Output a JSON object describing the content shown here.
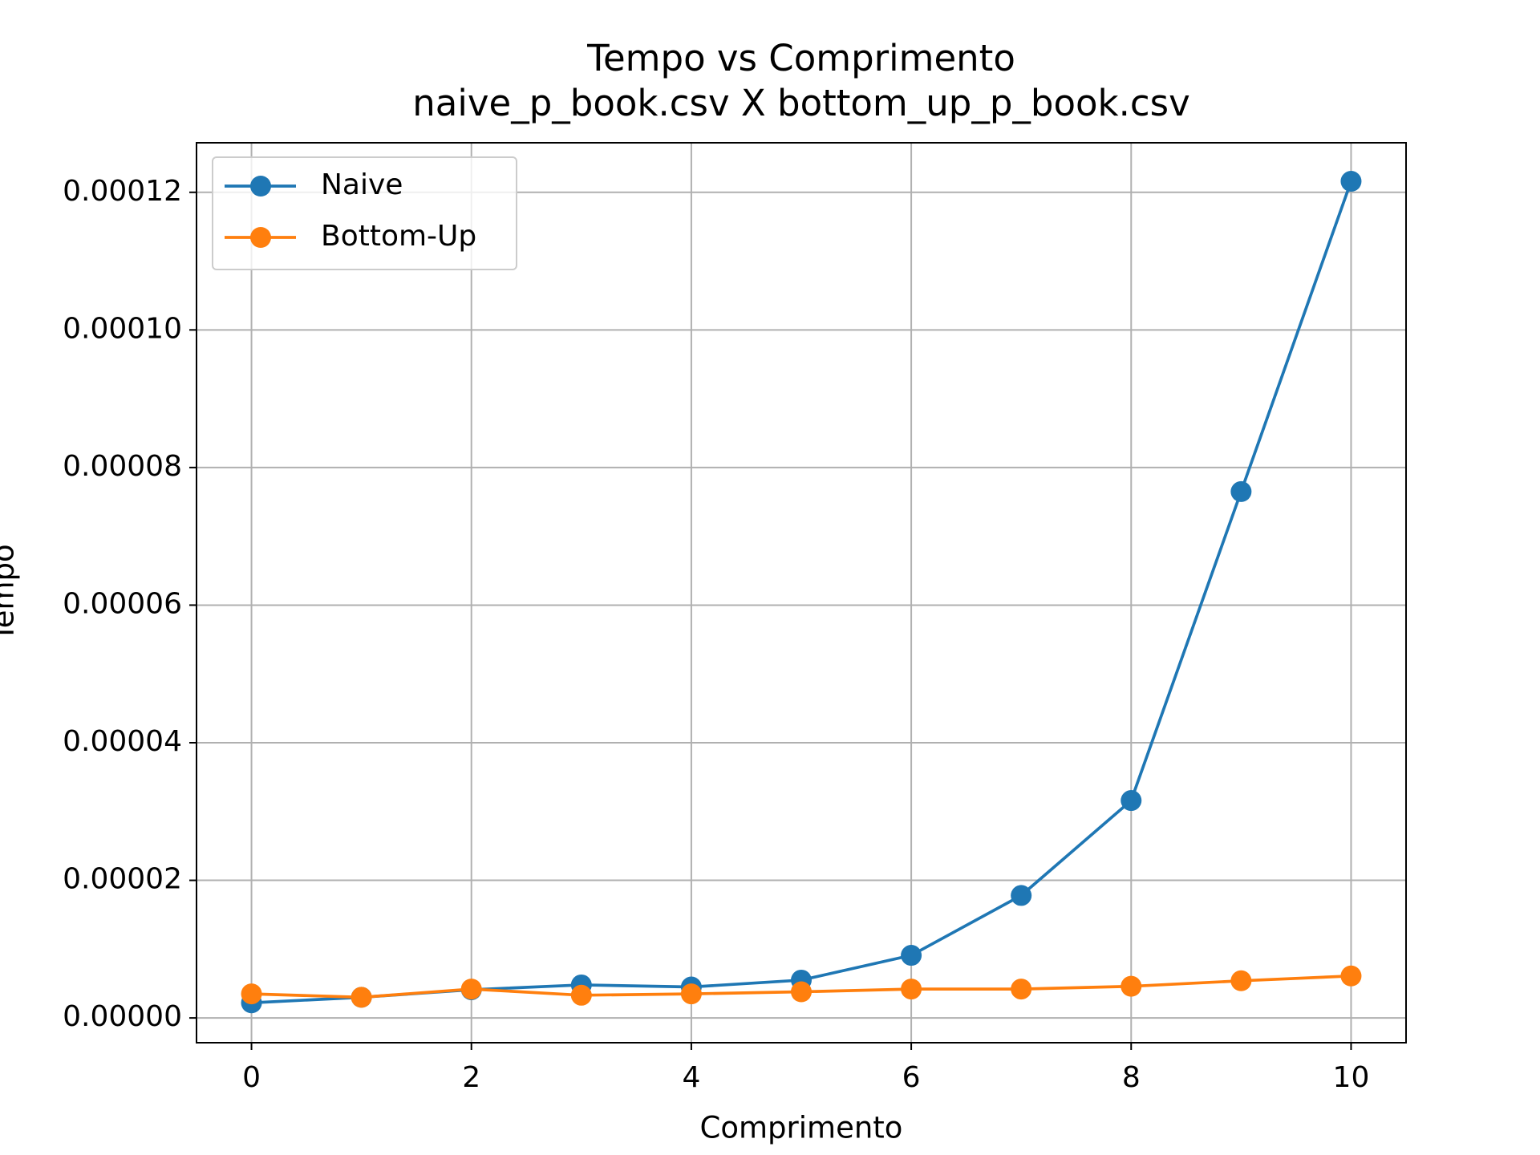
{
  "chart_data": {
    "type": "line",
    "title": "Tempo vs Comprimento",
    "subtitle": "naive_p_book.csv X bottom_up_p_book.csv",
    "xlabel": "Comprimento",
    "ylabel": "Tempo",
    "x": [
      0,
      1,
      2,
      3,
      4,
      5,
      6,
      7,
      8,
      9,
      10
    ],
    "series": [
      {
        "name": "Naive",
        "color": "#1f77b4",
        "values": [
          2.2e-06,
          3e-06,
          4.1e-06,
          4.8e-06,
          4.5e-06,
          5.5e-06,
          9.1e-06,
          1.78e-05,
          3.16e-05,
          7.65e-05,
          0.0001216
        ]
      },
      {
        "name": "Bottom-Up",
        "color": "#ff7f0e",
        "values": [
          3.5e-06,
          3e-06,
          4.2e-06,
          3.3e-06,
          3.5e-06,
          3.8e-06,
          4.2e-06,
          4.2e-06,
          4.6e-06,
          5.4e-06,
          6.1e-06
        ]
      }
    ],
    "xlim": [
      -0.5,
      10.5
    ],
    "xticks": [
      0,
      2,
      4,
      6,
      8,
      10
    ],
    "ylim": [
      -3.6e-06,
      0.0001272
    ],
    "yticks": [
      {
        "value": 0,
        "label": "0.00000"
      },
      {
        "value": 2e-05,
        "label": "0.00002"
      },
      {
        "value": 4e-05,
        "label": "0.00004"
      },
      {
        "value": 6e-05,
        "label": "0.00006"
      },
      {
        "value": 8e-05,
        "label": "0.00008"
      },
      {
        "value": 0.0001,
        "label": "0.00010"
      },
      {
        "value": 0.00012,
        "label": "0.00012"
      }
    ],
    "grid": true,
    "legend": "upper left"
  }
}
